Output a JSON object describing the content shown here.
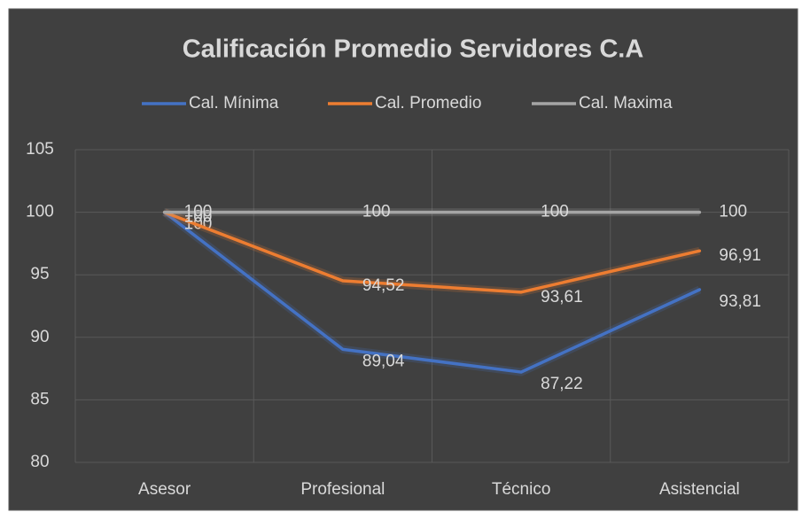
{
  "chart_data": {
    "type": "line",
    "title": "Calificación Promedio Servidores C.A",
    "categories": [
      "Asesor",
      "Profesional",
      "Técnico",
      "Asistencial"
    ],
    "series": [
      {
        "name": "Cal. Mínima",
        "color": "#4472c4",
        "values": [
          100,
          89.04,
          87.22,
          93.81
        ],
        "value_labels": [
          "100",
          "89,04",
          "87,22",
          "93,81"
        ]
      },
      {
        "name": "Cal. Promedio",
        "color": "#ed7d31",
        "values": [
          100,
          94.52,
          93.61,
          96.91
        ],
        "value_labels": [
          "100",
          "94,52",
          "93,61",
          "96,91"
        ]
      },
      {
        "name": "Cal. Maxima",
        "color": "#a5a5a5",
        "values": [
          100,
          100,
          100,
          100
        ]
      }
    ],
    "ylim": [
      80,
      105
    ],
    "yticks": [
      80,
      85,
      90,
      95,
      100,
      105
    ],
    "grid": true,
    "legend": "top"
  }
}
